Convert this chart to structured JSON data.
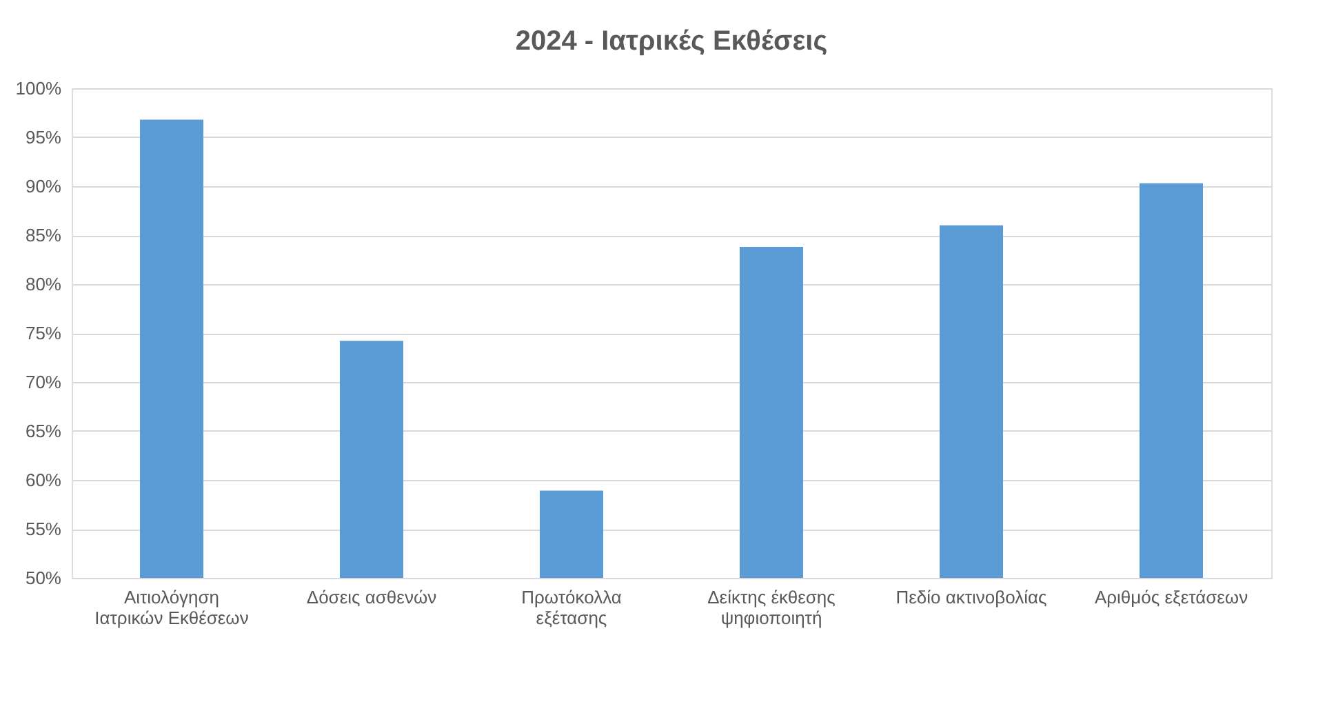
{
  "chart_data": {
    "type": "bar",
    "title": "2024 - Ιατρικές Εκθέσεις",
    "categories": [
      "Αιτιολόγηση Ιατρικών Εκθέσεων",
      "Δόσεις ασθενών",
      "Πρωτόκολλα εξέτασης",
      "Δείκτης έκθεσης ψηφιοποιητή",
      "Πεδίο ακτινοβολίας",
      "Αριθμός εξετάσεων"
    ],
    "values": [
      96.8,
      74.2,
      58.9,
      83.8,
      86.0,
      90.3
    ],
    "color": "#5b9bd5",
    "ylim": [
      50,
      100
    ],
    "yticks": [
      {
        "value": 50,
        "label": "50%"
      },
      {
        "value": 55,
        "label": "55%"
      },
      {
        "value": 60,
        "label": "60%"
      },
      {
        "value": 65,
        "label": "65%"
      },
      {
        "value": 70,
        "label": "70%"
      },
      {
        "value": 75,
        "label": "75%"
      },
      {
        "value": 80,
        "label": "80%"
      },
      {
        "value": 85,
        "label": "85%"
      },
      {
        "value": 90,
        "label": "90%"
      },
      {
        "value": 95,
        "label": "95%"
      },
      {
        "value": 100,
        "label": "100%"
      }
    ],
    "grid": "y"
  }
}
